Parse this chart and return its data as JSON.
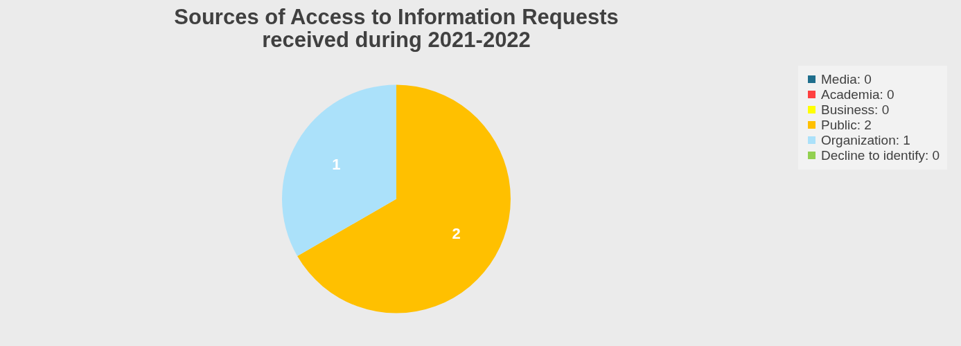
{
  "chart_data": {
    "type": "pie",
    "title": "Sources of Access to Information Requests received during 2021-2022",
    "categories": [
      "Media: 0",
      "Academia: 0",
      "Business: 0",
      "Public: 2",
      "Organization: 1",
      "Decline to identify: 0"
    ],
    "values": [
      0,
      0,
      0,
      2,
      1,
      0
    ],
    "colors": [
      "#1f6e8c",
      "#ff4040",
      "#ffff00",
      "#ffc000",
      "#abe1fa",
      "#92d050"
    ],
    "data_labels": true,
    "legend": "right"
  }
}
